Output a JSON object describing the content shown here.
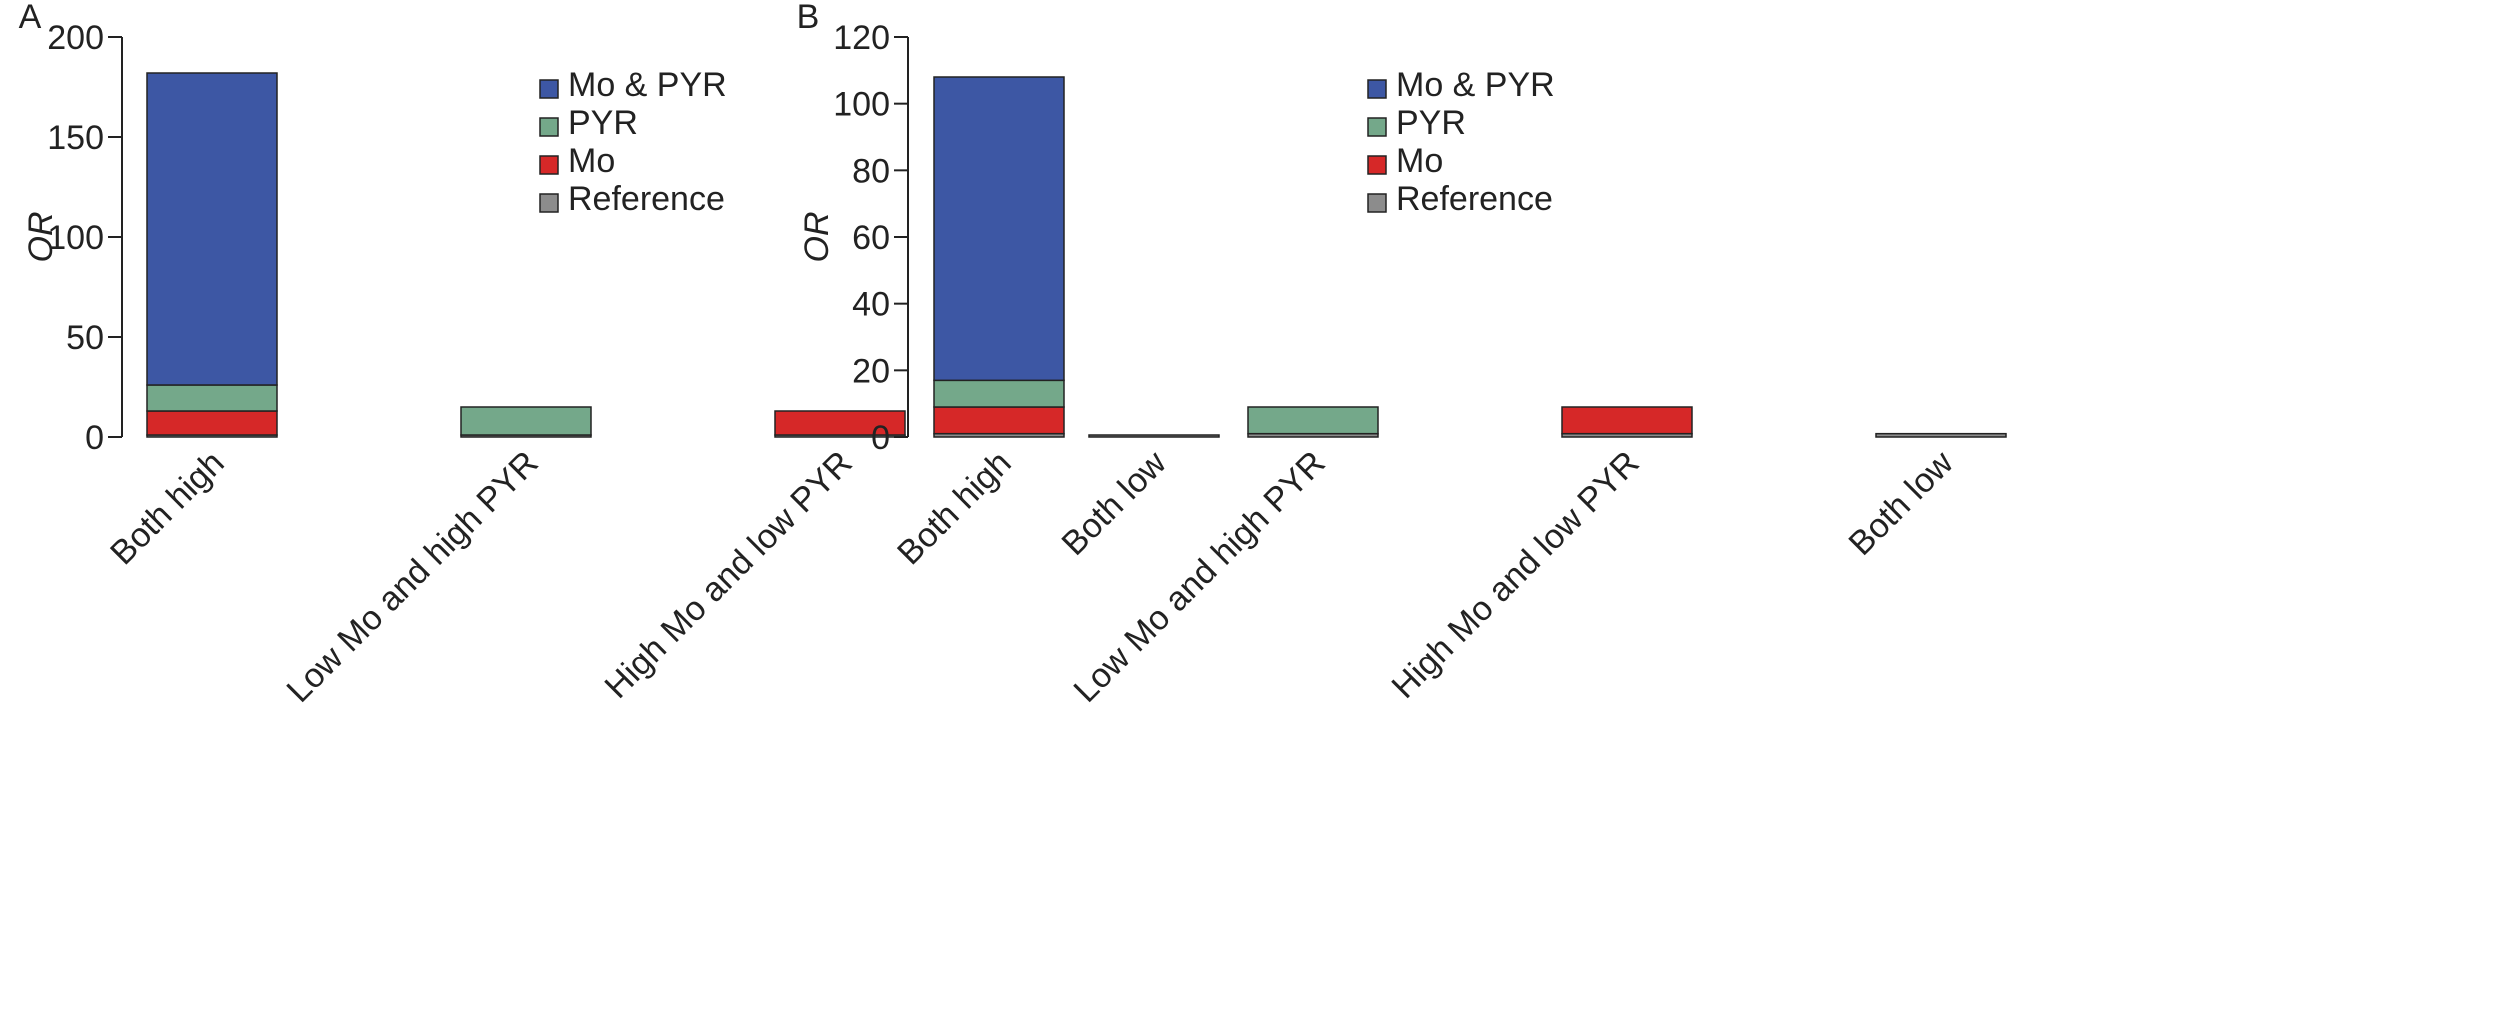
{
  "chart_data": [
    {
      "panel": "A",
      "type": "bar",
      "stacked": true,
      "ylabel": "OR",
      "xlabel": "",
      "ylim": [
        0,
        200
      ],
      "yticks": [
        0,
        50,
        100,
        150,
        200
      ],
      "categories": [
        "Both high",
        "Low Mo and high PYR",
        "High Mo and low PYR",
        "Both low"
      ],
      "series": [
        {
          "name": "Reference",
          "color": "#8c8c8c",
          "values": [
            1,
            1,
            1,
            1
          ]
        },
        {
          "name": "Mo",
          "color": "#d62828",
          "values": [
            12,
            0,
            12,
            0
          ]
        },
        {
          "name": "PYR",
          "color": "#74a88a",
          "values": [
            13,
            14,
            0,
            0
          ]
        },
        {
          "name": "Mo & PYR",
          "color": "#3d57a4",
          "values": [
            156,
            0,
            0,
            0
          ]
        }
      ],
      "legend": {
        "position": "top-right",
        "order": [
          "Mo & PYR",
          "PYR",
          "Mo",
          "Reference"
        ]
      }
    },
    {
      "panel": "B",
      "type": "bar",
      "stacked": true,
      "ylabel": "OR",
      "xlabel": "",
      "ylim": [
        0,
        120
      ],
      "yticks": [
        0,
        20,
        40,
        60,
        80,
        100,
        120
      ],
      "categories": [
        "Both high",
        "Low Mo and high PYR",
        "High Mo and low PYR",
        "Both low"
      ],
      "series": [
        {
          "name": "Reference",
          "color": "#8c8c8c",
          "values": [
            1,
            1,
            1,
            1
          ]
        },
        {
          "name": "Mo",
          "color": "#d62828",
          "values": [
            8,
            0,
            8,
            0
          ]
        },
        {
          "name": "PYR",
          "color": "#74a88a",
          "values": [
            8,
            8,
            0,
            0
          ]
        },
        {
          "name": "Mo & PYR",
          "color": "#3d57a4",
          "values": [
            91,
            0,
            0,
            0
          ]
        }
      ],
      "legend": {
        "position": "top-right",
        "order": [
          "Mo & PYR",
          "PYR",
          "Mo",
          "Reference"
        ]
      }
    }
  ]
}
